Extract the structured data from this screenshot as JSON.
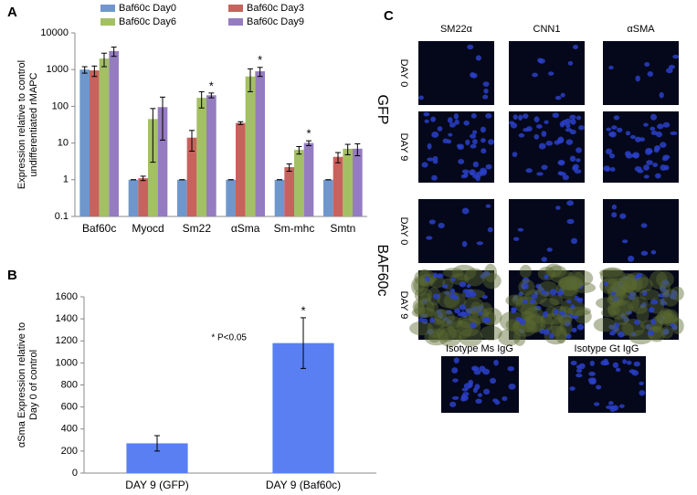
{
  "chart_data": [
    {
      "type": "bar",
      "panel": "A",
      "y_label": [
        "Expression relative to control",
        "undifferentiated rMAPC"
      ],
      "yscale": "log",
      "ylim": [
        0.1,
        10000
      ],
      "yticks": [
        0.1,
        1,
        10,
        100,
        1000,
        10000
      ],
      "categories": [
        "Baf60c",
        "Myocd",
        "Sm22",
        "αSma",
        "Sm-mhc",
        "Smtn"
      ],
      "series": [
        {
          "name": "Baf60c Day0",
          "color": "#6f97cc",
          "values": [
            1000,
            1,
            1,
            1,
            1,
            1
          ],
          "errors": [
            200,
            0,
            0,
            0,
            0,
            0
          ]
        },
        {
          "name": "Baf60c Day3",
          "color": "#c8625c",
          "values": [
            950,
            1.1,
            14,
            35,
            2.2,
            4.2
          ],
          "errors": [
            300,
            0.15,
            8,
            3,
            0.5,
            1.3
          ]
        },
        {
          "name": "Baf60c Day6",
          "color": "#a3c065",
          "values": [
            2000,
            45,
            170,
            650,
            6.5,
            7
          ],
          "errors": [
            800,
            42,
            80,
            400,
            1.5,
            2.2
          ]
        },
        {
          "name": "Baf60c Day9",
          "color": "#957cc0",
          "values": [
            3200,
            95,
            200,
            900,
            10,
            7
          ],
          "errors": [
            900,
            83,
            30,
            250,
            1.5,
            2.5
          ]
        }
      ],
      "annotations": [
        {
          "text": "*",
          "series": 3,
          "category": 2
        },
        {
          "text": "*",
          "series": 3,
          "category": 3
        },
        {
          "text": "*",
          "series": 3,
          "category": 4
        }
      ]
    },
    {
      "type": "bar",
      "panel": "B",
      "y_label": [
        "αSma Expression relative to",
        "Day 0 of control"
      ],
      "ylim": [
        0,
        1600
      ],
      "yticks": [
        0,
        200,
        400,
        600,
        800,
        1000,
        1200,
        1400,
        1600
      ],
      "categories": [
        "DAY 9 (GFP)",
        "DAY 9 (Baf60c)"
      ],
      "color": "#5a7ff2",
      "values": [
        270,
        1180
      ],
      "errors": [
        70,
        230
      ],
      "annotations": [
        {
          "text": "*",
          "category": 1
        }
      ],
      "note": "* P<0.05"
    }
  ],
  "panel_c": {
    "panel": "C",
    "columns": [
      "SM22α",
      "CNN1",
      "αSMA"
    ],
    "groups": [
      "GFP",
      "BAF60c"
    ],
    "rows": [
      "DAY 0",
      "DAY 9"
    ],
    "isotypes": [
      "Isotype Ms IgG",
      "Isotype Gt IgG"
    ]
  }
}
